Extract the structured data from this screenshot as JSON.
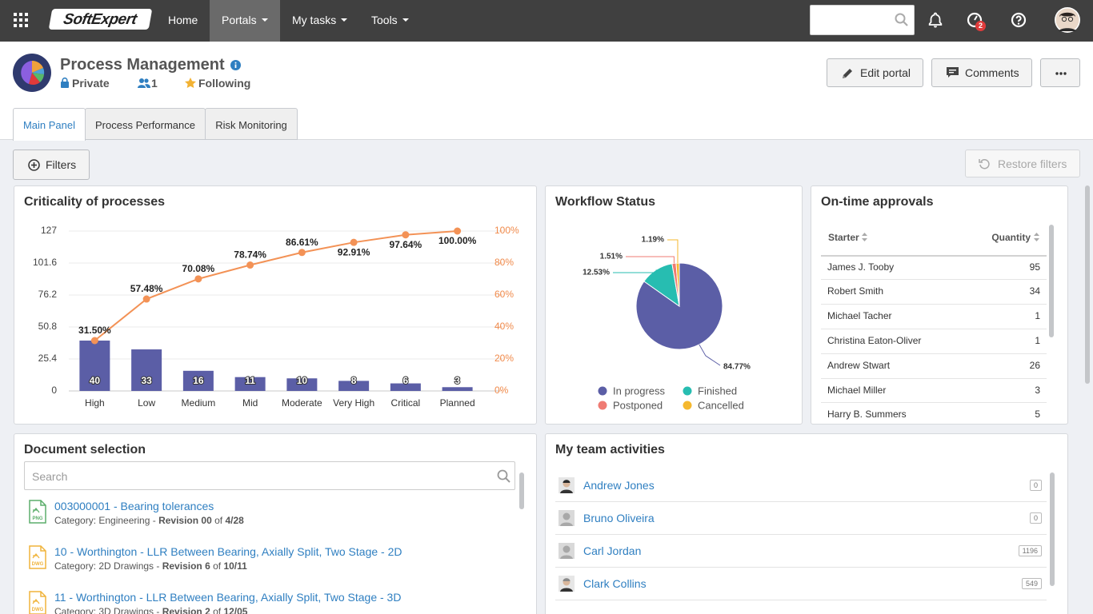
{
  "nav": {
    "logo": "SoftExpert",
    "items": [
      "Home",
      "Portals",
      "My tasks",
      "Tools"
    ],
    "badge": "2"
  },
  "header": {
    "title": "Process Management",
    "privacy": "Private",
    "members": "1",
    "following": "Following",
    "buttons": [
      "Edit portal",
      "Comments"
    ]
  },
  "tabs": [
    "Main Panel",
    "Process Performance",
    "Risk Monitoring"
  ],
  "toolbar": {
    "filters": "Filters",
    "restore": "Restore filters"
  },
  "chart_data": [
    {
      "type": "pareto",
      "title": "Criticality of processes",
      "categories": [
        "High",
        "Low",
        "Medium",
        "Mid",
        "Moderate",
        "Very High",
        "Critical",
        "Planned"
      ],
      "series": [
        {
          "type": "bar",
          "color": "#5b5ea6",
          "values": [
            40,
            33,
            16,
            11,
            10,
            8,
            6,
            3
          ]
        },
        {
          "type": "line",
          "color": "#f39256",
          "axis": "y2",
          "values": [
            31.5,
            57.48,
            70.08,
            78.74,
            86.61,
            92.91,
            97.64,
            100
          ],
          "value_labels": [
            "31.50%",
            "57.48%",
            "70.08%",
            "78.74%",
            "86.61%",
            "92.91%",
            "97.64%",
            "100.00%"
          ]
        }
      ],
      "ylim": [
        0,
        127
      ],
      "yticks": [
        0,
        25.4,
        50.8,
        76.2,
        101.6,
        127
      ],
      "y2lim": [
        0,
        100
      ],
      "y2ticks": [
        {
          "value": 0,
          "label": "0%"
        },
        {
          "value": 20,
          "label": "20%"
        },
        {
          "value": 40,
          "label": "40%"
        },
        {
          "value": 60,
          "label": "60%"
        },
        {
          "value": 80,
          "label": "80%"
        },
        {
          "value": 100,
          "label": "100%"
        }
      ],
      "grid": true
    },
    {
      "type": "pie",
      "title": "Workflow Status",
      "categories": [
        "In progress",
        "Finished",
        "Postponed",
        "Cancelled"
      ],
      "values": [
        84.77,
        12.53,
        1.51,
        1.19
      ],
      "value_labels": [
        "84.77%",
        "12.53%",
        "1.51%",
        "1.19%"
      ],
      "colors": [
        "#5b5ea6",
        "#27bdb1",
        "#ef7b73",
        "#f5b82e"
      ]
    }
  ],
  "approvals": {
    "title": "On-time approvals",
    "columns": [
      "Starter",
      "Quantity"
    ],
    "rows": [
      [
        "James J. Tooby",
        "95"
      ],
      [
        "Robert Smith",
        "34"
      ],
      [
        "Michael Tacher",
        "1"
      ],
      [
        "Christina Eaton-Oliver",
        "1"
      ],
      [
        "Andrew Stwart",
        "26"
      ],
      [
        "Michael Miller",
        "3"
      ],
      [
        "Harry B. Summers",
        "5"
      ]
    ]
  },
  "documents": {
    "title": "Document selection",
    "search": "Search",
    "items": [
      {
        "icon": "PNG",
        "title": "003000001 - Bearing tolerances",
        "meta": [
          "Category: Engineering - ",
          "Revision 00",
          " of ",
          "4/28"
        ]
      },
      {
        "icon": "DWG",
        "title": "10 - Worthington - LLR Between Bearing, Axially Split, Two Stage - 2D",
        "meta": [
          "Category: 2D Drawings - ",
          "Revision 6",
          " of ",
          "10/11"
        ]
      },
      {
        "icon": "DWG",
        "title": "11 - Worthington - LLR Between Bearing, Axially Split, Two Stage - 3D",
        "meta": [
          "Category: 3D Drawings - ",
          "Revision 2",
          " of ",
          "12/05"
        ]
      }
    ]
  },
  "team": {
    "title": "My team activities",
    "members": [
      {
        "name": "Andrew Jones",
        "count": "0"
      },
      {
        "name": "Bruno Oliveira",
        "count": "0"
      },
      {
        "name": "Carl Jordan",
        "count": "1196"
      },
      {
        "name": "Clark Collins",
        "count": "549"
      }
    ]
  }
}
